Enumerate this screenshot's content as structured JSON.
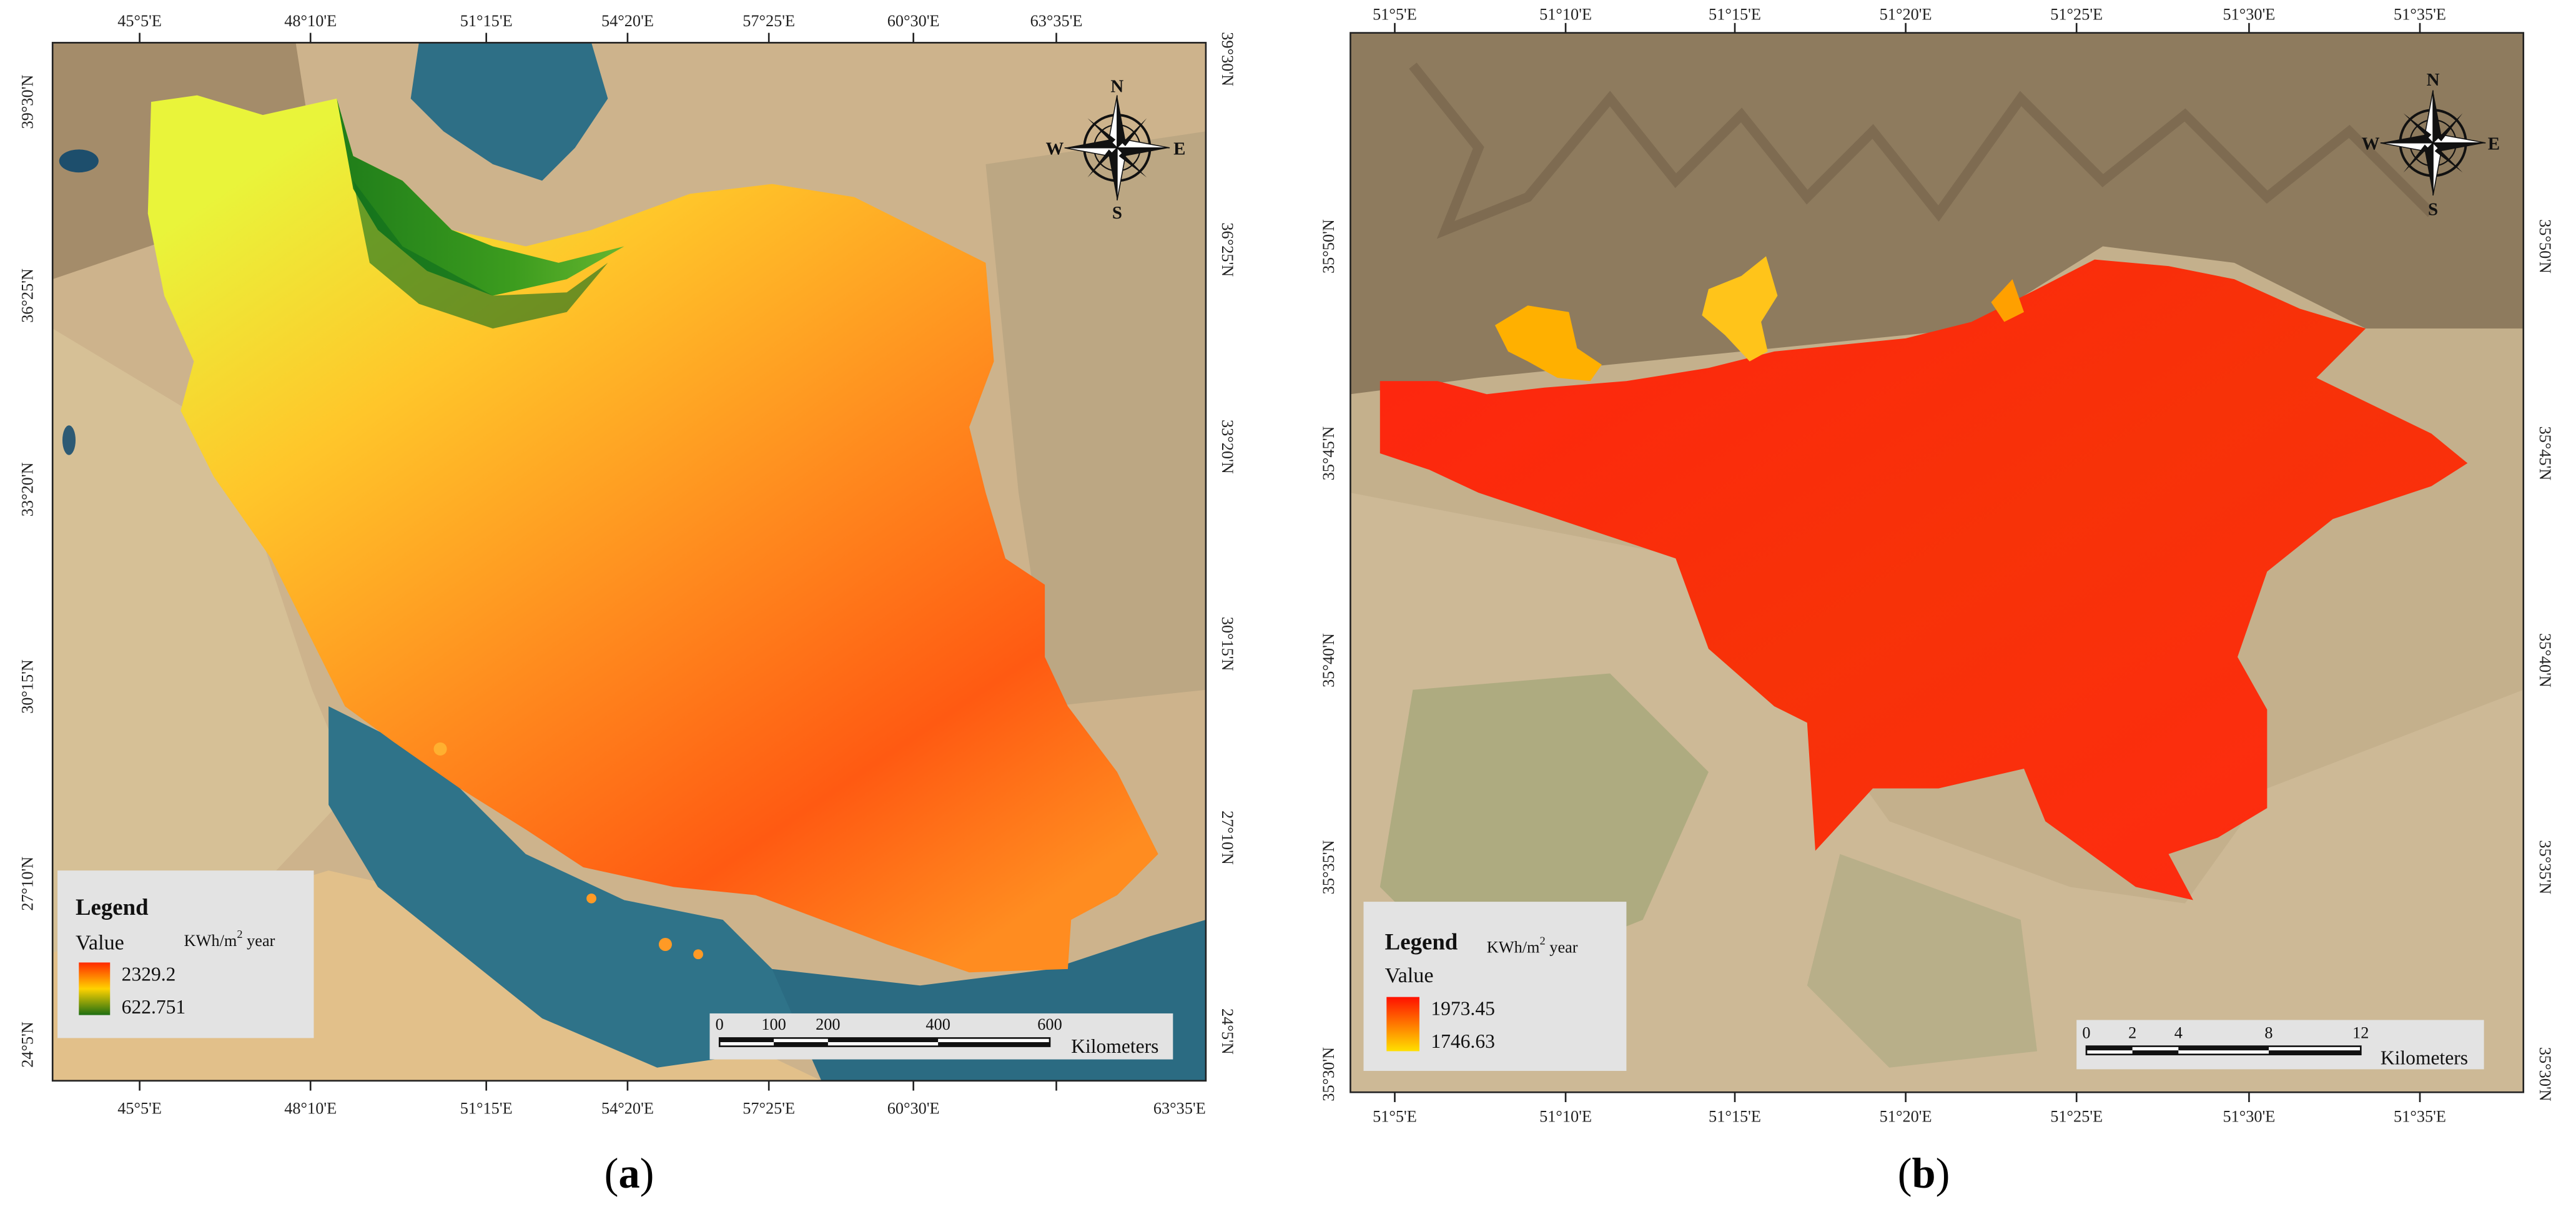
{
  "panels": {
    "a": {
      "caption_label": "a",
      "top_ticks": [
        "45°5'E",
        "48°10'E",
        "51°15'E",
        "54°20'E",
        "57°25'E",
        "60°30'E",
        "63°35'E"
      ],
      "bottom_ticks": [
        "45°5'E",
        "48°10'E",
        "51°15'E",
        "54°20'E",
        "57°25'E",
        "60°30'E",
        "63°35'E"
      ],
      "left_ticks": [
        "39°30'N",
        "36°25'N",
        "33°20'N",
        "30°15'N",
        "27°10'N",
        "24°5'N"
      ],
      "right_ticks": [
        "39°30'N",
        "36°25'N",
        "33°20'N",
        "30°15'N",
        "27°10'N",
        "24°5'N"
      ],
      "legend": {
        "title": "Legend",
        "field": "Value",
        "unit_prefix": "KWh/m",
        "unit_sup": "2",
        "unit_suffix": " year",
        "max": "2329.2",
        "min": "622.751",
        "colors": {
          "high": "#ff2a00",
          "mid": "#ffd200",
          "low": "#1e6e12"
        }
      },
      "compass": {
        "n": "N",
        "s": "S",
        "e": "E",
        "w": "W"
      },
      "scale_bar": {
        "labels": [
          "0",
          "100",
          "200",
          "400",
          "600"
        ],
        "unit": "Kilometers"
      }
    },
    "b": {
      "caption_label": "b",
      "top_ticks": [
        "51°5'E",
        "51°10'E",
        "51°15'E",
        "51°20'E",
        "51°25'E",
        "51°30'E",
        "51°35'E"
      ],
      "bottom_ticks": [
        "51°5'E",
        "51°10'E",
        "51°15'E",
        "51°20'E",
        "51°25'E",
        "51°30'E",
        "51°35'E"
      ],
      "left_ticks": [
        "35°50'N",
        "35°45'N",
        "35°40'N",
        "35°35'N",
        "35°30'N"
      ],
      "right_ticks": [
        "35°50'N",
        "35°45'N",
        "35°40'N",
        "35°35'N",
        "35°30'N"
      ],
      "legend": {
        "title": "Legend",
        "field": "Value",
        "unit_prefix": "KWh/m",
        "unit_sup": "2",
        "unit_suffix": " year",
        "max": "1973.45",
        "min": "1746.63",
        "colors": {
          "high": "#ff1000",
          "low": "#ffe000"
        }
      },
      "compass": {
        "n": "N",
        "s": "S",
        "e": "E",
        "w": "W"
      },
      "scale_bar": {
        "labels": [
          "0",
          "2",
          "4",
          "8",
          "12"
        ],
        "unit": "Kilometers"
      }
    }
  }
}
